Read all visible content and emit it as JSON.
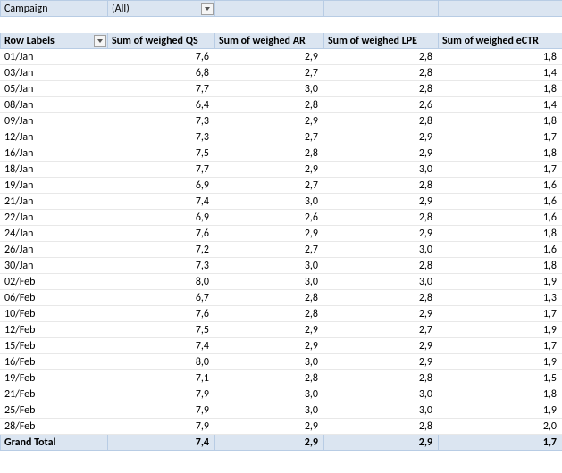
{
  "filter": {
    "label": "Campaign",
    "value": "(All)"
  },
  "headers": {
    "rowLabels": "Row Labels",
    "qs": "Sum of weighed QS",
    "ar": "Sum of weighed AR",
    "lpe": "Sum of weighed LPE",
    "ectr": "Sum of weighed eCTR"
  },
  "rows": [
    {
      "label": "01/Jan",
      "qs": "7,6",
      "ar": "2,9",
      "lpe": "2,8",
      "ectr": "1,8"
    },
    {
      "label": "03/Jan",
      "qs": "6,8",
      "ar": "2,7",
      "lpe": "2,8",
      "ectr": "1,4"
    },
    {
      "label": "05/Jan",
      "qs": "7,7",
      "ar": "3,0",
      "lpe": "2,8",
      "ectr": "1,8"
    },
    {
      "label": "08/Jan",
      "qs": "6,4",
      "ar": "2,8",
      "lpe": "2,6",
      "ectr": "1,4"
    },
    {
      "label": "09/Jan",
      "qs": "7,3",
      "ar": "2,9",
      "lpe": "2,8",
      "ectr": "1,8"
    },
    {
      "label": "12/Jan",
      "qs": "7,3",
      "ar": "2,7",
      "lpe": "2,9",
      "ectr": "1,7"
    },
    {
      "label": "16/Jan",
      "qs": "7,5",
      "ar": "2,8",
      "lpe": "2,9",
      "ectr": "1,8"
    },
    {
      "label": "18/Jan",
      "qs": "7,7",
      "ar": "2,9",
      "lpe": "3,0",
      "ectr": "1,7"
    },
    {
      "label": "19/Jan",
      "qs": "6,9",
      "ar": "2,7",
      "lpe": "2,8",
      "ectr": "1,6"
    },
    {
      "label": "21/Jan",
      "qs": "7,4",
      "ar": "3,0",
      "lpe": "2,9",
      "ectr": "1,6"
    },
    {
      "label": "22/Jan",
      "qs": "6,9",
      "ar": "2,6",
      "lpe": "2,8",
      "ectr": "1,6"
    },
    {
      "label": "24/Jan",
      "qs": "7,6",
      "ar": "2,9",
      "lpe": "2,9",
      "ectr": "1,8"
    },
    {
      "label": "26/Jan",
      "qs": "7,2",
      "ar": "2,7",
      "lpe": "3,0",
      "ectr": "1,6"
    },
    {
      "label": "30/Jan",
      "qs": "7,3",
      "ar": "3,0",
      "lpe": "2,8",
      "ectr": "1,8"
    },
    {
      "label": "02/Feb",
      "qs": "8,0",
      "ar": "3,0",
      "lpe": "3,0",
      "ectr": "1,9"
    },
    {
      "label": "06/Feb",
      "qs": "6,7",
      "ar": "2,8",
      "lpe": "2,8",
      "ectr": "1,3"
    },
    {
      "label": "10/Feb",
      "qs": "7,6",
      "ar": "2,8",
      "lpe": "2,9",
      "ectr": "1,7"
    },
    {
      "label": "12/Feb",
      "qs": "7,5",
      "ar": "2,9",
      "lpe": "2,7",
      "ectr": "1,9"
    },
    {
      "label": "15/Feb",
      "qs": "7,4",
      "ar": "2,9",
      "lpe": "2,9",
      "ectr": "1,7"
    },
    {
      "label": "16/Feb",
      "qs": "8,0",
      "ar": "3,0",
      "lpe": "2,9",
      "ectr": "1,9"
    },
    {
      "label": "19/Feb",
      "qs": "7,1",
      "ar": "2,8",
      "lpe": "2,8",
      "ectr": "1,5"
    },
    {
      "label": "21/Feb",
      "qs": "7,9",
      "ar": "3,0",
      "lpe": "3,0",
      "ectr": "1,8"
    },
    {
      "label": "25/Feb",
      "qs": "7,9",
      "ar": "3,0",
      "lpe": "3,0",
      "ectr": "1,9"
    },
    {
      "label": "28/Feb",
      "qs": "7,9",
      "ar": "2,9",
      "lpe": "2,8",
      "ectr": "2,0"
    }
  ],
  "total": {
    "label": "Grand Total",
    "qs": "7,4",
    "ar": "2,9",
    "lpe": "2,9",
    "ectr": "1,7"
  },
  "colors": {
    "header_bg": "#dbe5f1",
    "header_border": "#b8cce4",
    "row_border": "#e8e8e8"
  }
}
